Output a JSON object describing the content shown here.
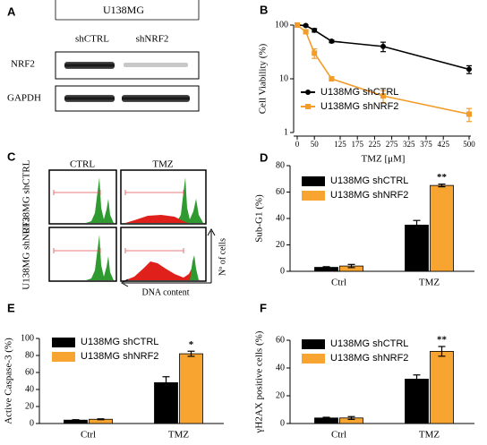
{
  "blot": {
    "panel_label": "A",
    "cell_line": "U138MG",
    "lanes": [
      "shCTRL",
      "shNRF2"
    ],
    "rows": [
      "NRF2",
      "GAPDH"
    ]
  },
  "flow": {
    "panel_label": "C",
    "columns": [
      "CTRL",
      "TMZ"
    ],
    "rows": [
      "U138MG shCTRL",
      "U138MG shNRF2"
    ],
    "y_label": "Nº of cells",
    "x_label": "DNA content"
  },
  "chart_data": [
    {
      "type": "line",
      "panel_label": "B",
      "y_label": "Cell Viability (%)",
      "x_label": "TMZ [μM]",
      "yscale": "log",
      "x": [
        0,
        25,
        50,
        100,
        250,
        500
      ],
      "xlim": [
        0,
        500
      ],
      "xticks": [
        0,
        50,
        125,
        175,
        225,
        275,
        325,
        375,
        425,
        500
      ],
      "ylim": [
        1,
        100
      ],
      "yticks": [
        1,
        10,
        100
      ],
      "series": [
        {
          "name": "U138MG shCTRL",
          "color": "#000000",
          "marker": "circle",
          "values": [
            100,
            98,
            80,
            50,
            40,
            15
          ],
          "errors": [
            2,
            3,
            6,
            3,
            8,
            2.5
          ]
        },
        {
          "name": "U138MG shNRF2",
          "color": "#f39c2a",
          "marker": "square",
          "values": [
            100,
            75,
            30,
            10,
            4.8,
            2.2
          ],
          "errors": [
            2,
            6,
            6,
            0.6,
            1.2,
            0.6
          ]
        }
      ]
    },
    {
      "type": "bar",
      "panel_label": "D",
      "y_label": "Sub-G1 (%)",
      "categories": [
        "Ctrl",
        "TMZ"
      ],
      "ylim": [
        0,
        80
      ],
      "yticks": [
        0,
        20,
        40,
        60,
        80
      ],
      "series": [
        {
          "name": "U138MG shCTRL",
          "color": "#000000",
          "values": [
            3,
            35
          ],
          "errors": [
            0.5,
            3.5
          ],
          "annotations": [
            null,
            null
          ]
        },
        {
          "name": "U138MG shNRF2",
          "color": "#f7a530",
          "values": [
            4,
            65
          ],
          "errors": [
            1.2,
            1
          ],
          "annotations": [
            null,
            "**"
          ]
        }
      ]
    },
    {
      "type": "bar",
      "panel_label": "E",
      "y_label": "Active Caspase-3 (%)",
      "categories": [
        "Ctrl",
        "TMZ"
      ],
      "ylim": [
        0,
        100
      ],
      "yticks": [
        0,
        20,
        40,
        60,
        80,
        100
      ],
      "series": [
        {
          "name": "U138MG shCTRL",
          "color": "#000000",
          "values": [
            4,
            48
          ],
          "errors": [
            0.5,
            7
          ],
          "annotations": [
            null,
            null
          ]
        },
        {
          "name": "U138MG shNRF2",
          "color": "#f7a530",
          "values": [
            5,
            82
          ],
          "errors": [
            0.5,
            3
          ],
          "annotations": [
            null,
            "*"
          ]
        }
      ]
    },
    {
      "type": "bar",
      "panel_label": "F",
      "y_label": "γH2AX positive cells (%)",
      "categories": [
        "Ctrl",
        "TMZ"
      ],
      "ylim": [
        0,
        60
      ],
      "yticks": [
        0,
        20,
        40,
        60
      ],
      "series": [
        {
          "name": "U138MG shCTRL",
          "color": "#000000",
          "values": [
            4,
            32
          ],
          "errors": [
            0.5,
            3
          ],
          "annotations": [
            null,
            null
          ]
        },
        {
          "name": "U138MG shNRF2",
          "color": "#f7a530",
          "values": [
            4,
            52
          ],
          "errors": [
            1,
            3.5
          ],
          "annotations": [
            null,
            "**"
          ]
        }
      ]
    }
  ]
}
